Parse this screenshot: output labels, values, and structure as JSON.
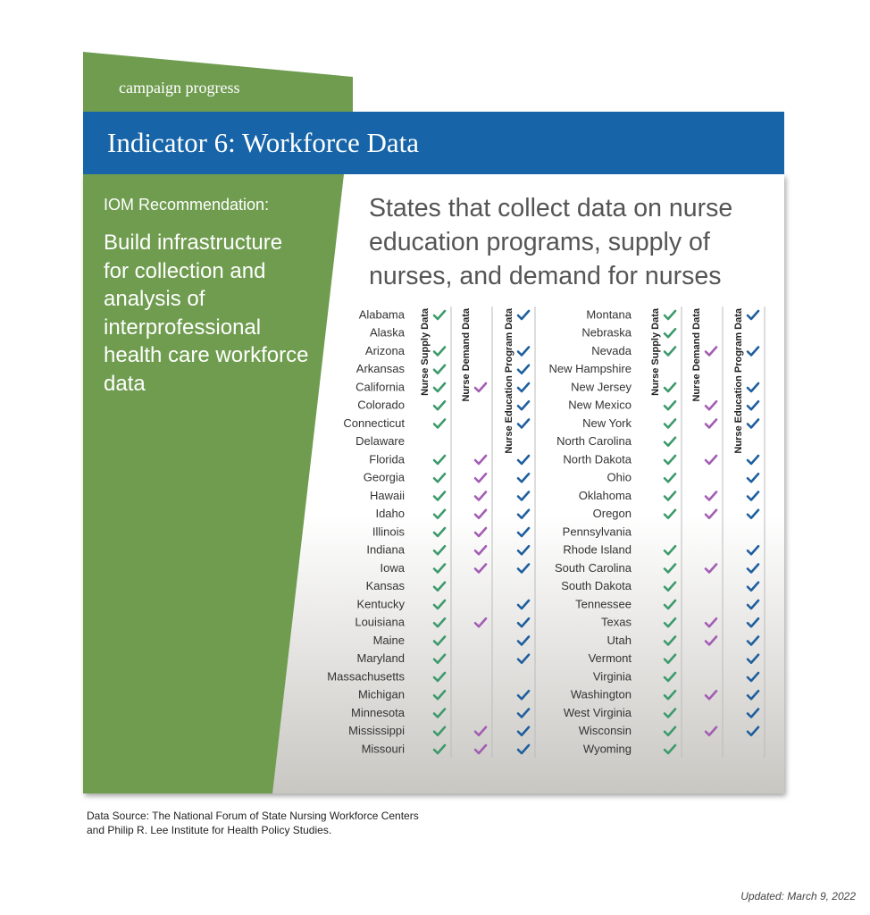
{
  "header": {
    "tab": "campaign progress",
    "title": "Indicator 6: Workforce Data"
  },
  "sidebar": {
    "label": "IOM Recommendation:",
    "text": "Build infrastructure for collection and analysis of interprofessional health care workforce data"
  },
  "table": {
    "title": "States that collect data on nurse education programs, supply of nurses, and demand for nurses",
    "columns": [
      {
        "label": "Nurse Supply Data",
        "color": "#3d9a6c"
      },
      {
        "label": "Nurse Demand Data",
        "color": "#a35db3"
      },
      {
        "label": "Nurse Education Program Data",
        "color": "#1f5f9e"
      }
    ],
    "rows": [
      [
        "Alabama",
        true,
        false,
        true
      ],
      [
        "Alaska",
        false,
        false,
        false
      ],
      [
        "Arizona",
        true,
        false,
        true
      ],
      [
        "Arkansas",
        true,
        false,
        true
      ],
      [
        "California",
        true,
        true,
        true
      ],
      [
        "Colorado",
        true,
        false,
        true
      ],
      [
        "Connecticut",
        true,
        false,
        true
      ],
      [
        "Delaware",
        false,
        false,
        false
      ],
      [
        "Florida",
        true,
        true,
        true
      ],
      [
        "Georgia",
        true,
        true,
        true
      ],
      [
        "Hawaii",
        true,
        true,
        true
      ],
      [
        "Idaho",
        true,
        true,
        true
      ],
      [
        "Illinois",
        true,
        true,
        true
      ],
      [
        "Indiana",
        true,
        true,
        true
      ],
      [
        "Iowa",
        true,
        true,
        true
      ],
      [
        "Kansas",
        true,
        false,
        false
      ],
      [
        "Kentucky",
        true,
        false,
        true
      ],
      [
        "Louisiana",
        true,
        true,
        true
      ],
      [
        "Maine",
        true,
        false,
        true
      ],
      [
        "Maryland",
        true,
        false,
        true
      ],
      [
        "Massachusetts",
        true,
        false,
        false
      ],
      [
        "Michigan",
        true,
        false,
        true
      ],
      [
        "Minnesota",
        true,
        false,
        true
      ],
      [
        "Mississippi",
        true,
        true,
        true
      ],
      [
        "Missouri",
        true,
        true,
        true
      ],
      [
        "Montana",
        true,
        false,
        true
      ],
      [
        "Nebraska",
        true,
        false,
        false
      ],
      [
        "Nevada",
        true,
        true,
        true
      ],
      [
        "New Hampshire",
        false,
        false,
        false
      ],
      [
        "New Jersey",
        true,
        false,
        true
      ],
      [
        "New Mexico",
        true,
        true,
        true
      ],
      [
        "New York",
        true,
        true,
        true
      ],
      [
        "North Carolina",
        true,
        false,
        false
      ],
      [
        "North Dakota",
        true,
        true,
        true
      ],
      [
        "Ohio",
        true,
        false,
        true
      ],
      [
        "Oklahoma",
        true,
        true,
        true
      ],
      [
        "Oregon",
        true,
        true,
        true
      ],
      [
        "Pennsylvania",
        false,
        false,
        false
      ],
      [
        "Rhode Island",
        true,
        false,
        true
      ],
      [
        "South Carolina",
        true,
        true,
        true
      ],
      [
        "South Dakota",
        true,
        false,
        true
      ],
      [
        "Tennessee",
        true,
        false,
        true
      ],
      [
        "Texas",
        true,
        true,
        true
      ],
      [
        "Utah",
        true,
        true,
        true
      ],
      [
        "Vermont",
        true,
        false,
        true
      ],
      [
        "Virginia",
        true,
        false,
        true
      ],
      [
        "Washington",
        true,
        true,
        true
      ],
      [
        "West Virginia",
        true,
        false,
        true
      ],
      [
        "Wisconsin",
        true,
        true,
        true
      ],
      [
        "Wyoming",
        true,
        false,
        false
      ]
    ]
  },
  "footer": {
    "source": [
      "Data Source: The National Forum of State Nursing Workforce Centers",
      "and Philip R. Lee Institute for Health Policy Studies."
    ],
    "updated": "Updated: March 9, 2022"
  }
}
